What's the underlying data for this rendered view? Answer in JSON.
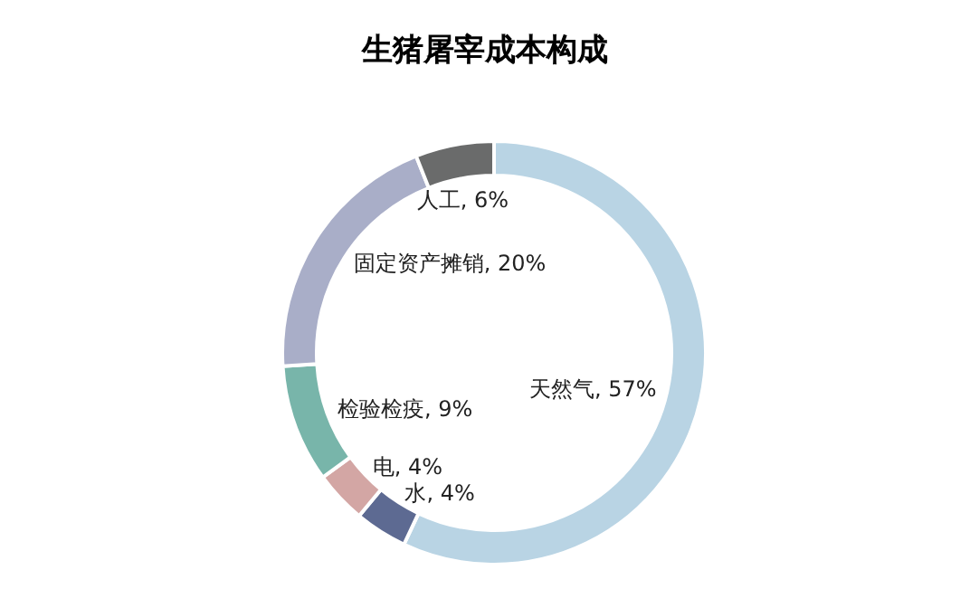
{
  "chart_data": {
    "type": "donut",
    "title": "生猪屠宰成本构成",
    "categories": [
      "天然气",
      "水",
      "电",
      "检验检疫",
      "固定资产摊销",
      "人工"
    ],
    "values": [
      57,
      4,
      4,
      9,
      20,
      6
    ],
    "value_labels": [
      ", 57%",
      ", 4%",
      ", 4%",
      ", 9%",
      ", 20%",
      ", 6%"
    ],
    "colors": [
      "#b9d4e4",
      "#5d6a92",
      "#d3a6a4",
      "#78b5aa",
      "#a9aec8",
      "#6a6b6b"
    ],
    "legend": false
  }
}
